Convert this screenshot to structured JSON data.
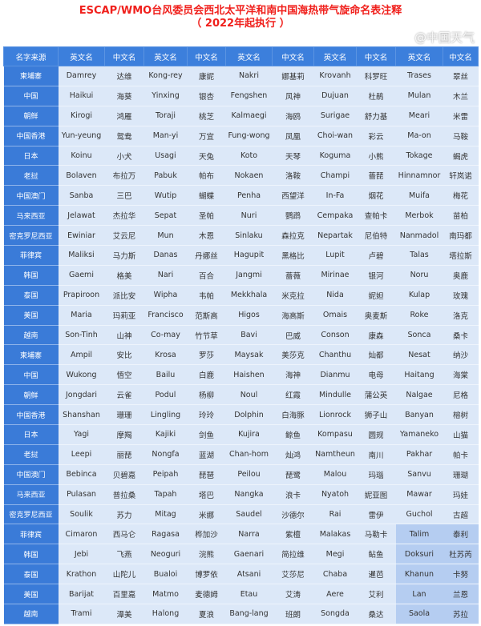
{
  "title_line1": "ESCAP/WMO台风委员会西北太平洋和南中国海热带气旋命名表注释",
  "title_line2": "（ 2022年起执行 ）",
  "headers": [
    "名字来源",
    "英文名",
    "中文名",
    "英文名",
    "中文名",
    "英文名",
    "中文名",
    "英文名",
    "中文名",
    "英文名",
    "中文名"
  ],
  "colors": {
    "header": "#3c7fdc",
    "source_col": "#3a7bd8",
    "cell": "#dce8f8",
    "highlight": "#b5cdf1",
    "title": "#f0201c"
  },
  "rows": [
    [
      "柬埔寨",
      "Damrey",
      "达维",
      "Kong-rey",
      "康妮",
      "Nakri",
      "娜基莉",
      "Krovanh",
      "科罗旺",
      "Trases",
      "翠丝"
    ],
    [
      "中国",
      "Haikui",
      "海葵",
      "Yinxing",
      "银杏",
      "Fengshen",
      "风神",
      "Dujuan",
      "杜鹃",
      "Mulan",
      "木兰"
    ],
    [
      "朝鲜",
      "Kirogi",
      "鸿雁",
      "Toraji",
      "桃芝",
      "Kalmaegi",
      "海鸥",
      "Surigae",
      "舒力基",
      "Meari",
      "米雷"
    ],
    [
      "中国香港",
      "Yun-yeung",
      "鸳鸯",
      "Man-yi",
      "万宜",
      "Fung-wong",
      "凤凰",
      "Choi-wan",
      "彩云",
      "Ma-on",
      "马鞍"
    ],
    [
      "日本",
      "Koinu",
      "小犬",
      "Usagi",
      "天兔",
      "Koto",
      "天琴",
      "Koguma",
      "小熊",
      "Tokage",
      "蝎虎"
    ],
    [
      "老挝",
      "Bolaven",
      "布拉万",
      "Pabuk",
      "帕布",
      "Nokaen",
      "洛鞍",
      "Champi",
      "蔷琵",
      "Hinnamnor",
      "轩岚诺"
    ],
    [
      "中国澳门",
      "Sanba",
      "三巴",
      "Wutip",
      "蝴蝶",
      "Penha",
      "西望洋",
      "In-Fa",
      "烟花",
      "Muifa",
      "梅花"
    ],
    [
      "马来西亚",
      "Jelawat",
      "杰拉华",
      "Sepat",
      "圣帕",
      "Nuri",
      "鹦鹉",
      "Cempaka",
      "查帕卡",
      "Merbok",
      "苗柏"
    ],
    [
      "密克罗尼西亚",
      "Ewiniar",
      "艾云尼",
      "Mun",
      "木恩",
      "Sinlaku",
      "森拉克",
      "Nepartak",
      "尼伯特",
      "Nanmadol",
      "南玛都"
    ],
    [
      "菲律宾",
      "Maliksi",
      "马力斯",
      "Danas",
      "丹娜丝",
      "Hagupit",
      "黑格比",
      "Lupit",
      "卢碧",
      "Talas",
      "塔拉斯"
    ],
    [
      "韩国",
      "Gaemi",
      "格美",
      "Nari",
      "百合",
      "Jangmi",
      "蔷薇",
      "Mirinae",
      "银河",
      "Noru",
      "奥鹿"
    ],
    [
      "泰国",
      "Prapiroon",
      "派比安",
      "Wipha",
      "韦帕",
      "Mekkhala",
      "米克拉",
      "Nida",
      "妮妲",
      "Kulap",
      "玫瑰"
    ],
    [
      "美国",
      "Maria",
      "玛莉亚",
      "Francisco",
      "范斯高",
      "Higos",
      "海高斯",
      "Omais",
      "奥麦斯",
      "Roke",
      "洛克"
    ],
    [
      "越南",
      "Son-Tinh",
      "山神",
      "Co-may",
      "竹节草",
      "Bavi",
      "巴威",
      "Conson",
      "康森",
      "Sonca",
      "桑卡"
    ],
    [
      "柬埔寨",
      "Ampil",
      "安比",
      "Krosa",
      "罗莎",
      "Maysak",
      "美莎克",
      "Chanthu",
      "灿都",
      "Nesat",
      "纳沙"
    ],
    [
      "中国",
      "Wukong",
      "悟空",
      "Bailu",
      "白鹿",
      "Haishen",
      "海神",
      "Dianmu",
      "电母",
      "Haitang",
      "海棠"
    ],
    [
      "朝鲜",
      "Jongdari",
      "云雀",
      "Podul",
      "杨柳",
      "Noul",
      "红霞",
      "Mindulle",
      "蒲公英",
      "Nalgae",
      "尼格"
    ],
    [
      "中国香港",
      "Shanshan",
      "珊珊",
      "Lingling",
      "玲玲",
      "Dolphin",
      "白海豚",
      "Lionrock",
      "狮子山",
      "Banyan",
      "榕树"
    ],
    [
      "日本",
      "Yagi",
      "摩羯",
      "Kajiki",
      "剑鱼",
      "Kujira",
      "鲸鱼",
      "Kompasu",
      "圆规",
      "Yamaneko",
      "山猫"
    ],
    [
      "老挝",
      "Leepi",
      "丽琵",
      "Nongfa",
      "蓝湖",
      "Chan-hom",
      "灿鸿",
      "Namtheun",
      "南川",
      "Pakhar",
      "帕卡"
    ],
    [
      "中国澳门",
      "Bebinca",
      "贝碧嘉",
      "Peipah",
      "琵琶",
      "Peilou",
      "琵鹭",
      "Malou",
      "玛瑙",
      "Sanvu",
      "珊瑚"
    ],
    [
      "马来西亚",
      "Pulasan",
      "普拉桑",
      "Tapah",
      "塔巴",
      "Nangka",
      "浪卡",
      "Nyatoh",
      "妮亚图",
      "Mawar",
      "玛娃"
    ],
    [
      "密克罗尼西亚",
      "Soulik",
      "苏力",
      "Mitag",
      "米娜",
      "Saudel",
      "沙德尔",
      "Rai",
      "雷伊",
      "Guchol",
      "古超"
    ],
    [
      "菲律宾",
      "Cimaron",
      "西马仑",
      "Ragasa",
      "桦加沙",
      "Narra",
      "紫檀",
      "Malakas",
      "马勒卡",
      "Talim",
      "泰利"
    ],
    [
      "韩国",
      "Jebi",
      "飞燕",
      "Neoguri",
      "浣熊",
      "Gaenari",
      "简拉维",
      "Megi",
      "鲇鱼",
      "Doksuri",
      "杜苏芮"
    ],
    [
      "泰国",
      "Krathon",
      "山陀儿",
      "Bualoi",
      "博罗依",
      "Atsani",
      "艾莎尼",
      "Chaba",
      "暹芭",
      "Khanun",
      "卡努"
    ],
    [
      "美国",
      "Barijat",
      "百里嘉",
      "Matmo",
      "麦德姆",
      "Etau",
      "艾涛",
      "Aere",
      "艾利",
      "Lan",
      "兰恩"
    ],
    [
      "越南",
      "Trami",
      "潭美",
      "Halong",
      "夏浪",
      "Bang-lang",
      "班朗",
      "Songda",
      "桑达",
      "Saola",
      "苏拉"
    ]
  ],
  "watermark": "@中国天气"
}
